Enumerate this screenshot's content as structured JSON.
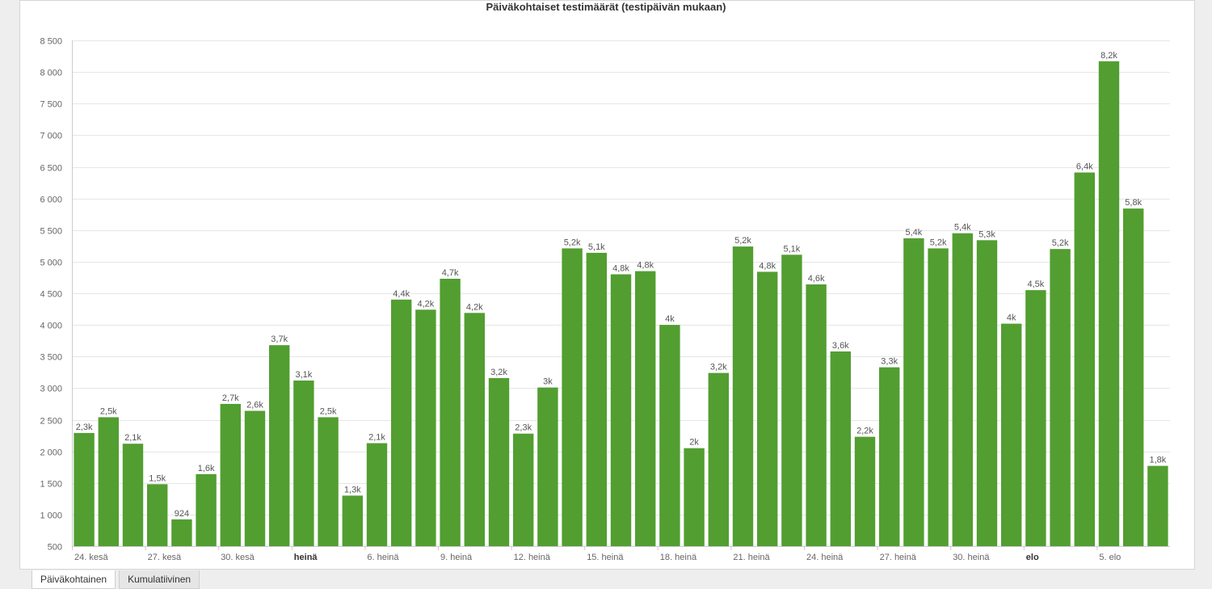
{
  "chart_data": {
    "type": "bar",
    "title": "Päiväkohtaiset testimäärät (testipäivän mukaan)",
    "xlabel": "",
    "ylabel": "",
    "ylim": [
      500,
      8500
    ],
    "yticks": [
      500,
      1000,
      1500,
      2000,
      2500,
      3000,
      3500,
      4000,
      4500,
      5000,
      5500,
      6000,
      6500,
      7000,
      7500,
      8000,
      8500
    ],
    "ytick_labels": [
      "500",
      "1 000",
      "1 500",
      "2 000",
      "2 500",
      "3 000",
      "3 500",
      "4 000",
      "4 500",
      "5 000",
      "5 500",
      "6 000",
      "6 500",
      "7 000",
      "7 500",
      "8 000",
      "8 500"
    ],
    "grid": true,
    "bar_color": "#529e31",
    "values": [
      2290,
      2540,
      2120,
      1480,
      924,
      1640,
      2750,
      2640,
      3680,
      3120,
      2540,
      1300,
      2130,
      4400,
      4240,
      4730,
      4190,
      3160,
      2280,
      3010,
      5210,
      5140,
      4800,
      4850,
      4000,
      2050,
      3240,
      5240,
      4840,
      5110,
      4640,
      3580,
      2230,
      3330,
      5370,
      5210,
      5450,
      5340,
      4020,
      4550,
      5200,
      6410,
      8170,
      5840,
      1770
    ],
    "data_labels": [
      "2,3k",
      "2,5k",
      "2,1k",
      "1,5k",
      "924",
      "1,6k",
      "2,7k",
      "2,6k",
      "3,7k",
      "3,1k",
      "2,5k",
      "1,3k",
      "2,1k",
      "4,4k",
      "4,2k",
      "4,7k",
      "4,2k",
      "3,2k",
      "2,3k",
      "3k",
      "5,2k",
      "5,1k",
      "4,8k",
      "4,8k",
      "4k",
      "2k",
      "3,2k",
      "5,2k",
      "4,8k",
      "5,1k",
      "4,6k",
      "3,6k",
      "2,2k",
      "3,3k",
      "5,4k",
      "5,2k",
      "5,4k",
      "5,3k",
      "4k",
      "4,5k",
      "5,2k",
      "6,4k",
      "8,2k",
      "5,8k",
      "1,8k"
    ],
    "x_ticks": [
      {
        "index": 0,
        "label": "24. kesä",
        "bold": false
      },
      {
        "index": 3,
        "label": "27. kesä",
        "bold": false
      },
      {
        "index": 6,
        "label": "30. kesä",
        "bold": false
      },
      {
        "index": 9,
        "label": "heinä",
        "bold": true
      },
      {
        "index": 12,
        "label": "6. heinä",
        "bold": false
      },
      {
        "index": 15,
        "label": "9. heinä",
        "bold": false
      },
      {
        "index": 18,
        "label": "12. heinä",
        "bold": false
      },
      {
        "index": 21,
        "label": "15. heinä",
        "bold": false
      },
      {
        "index": 24,
        "label": "18. heinä",
        "bold": false
      },
      {
        "index": 27,
        "label": "21. heinä",
        "bold": false
      },
      {
        "index": 30,
        "label": "24. heinä",
        "bold": false
      },
      {
        "index": 33,
        "label": "27. heinä",
        "bold": false
      },
      {
        "index": 36,
        "label": "30. heinä",
        "bold": false
      },
      {
        "index": 39,
        "label": "elo",
        "bold": true
      },
      {
        "index": 42,
        "label": "5. elo",
        "bold": false
      }
    ]
  },
  "tabs": [
    {
      "label": "Päiväkohtainen",
      "active": true
    },
    {
      "label": "Kumulatiivinen",
      "active": false
    }
  ]
}
